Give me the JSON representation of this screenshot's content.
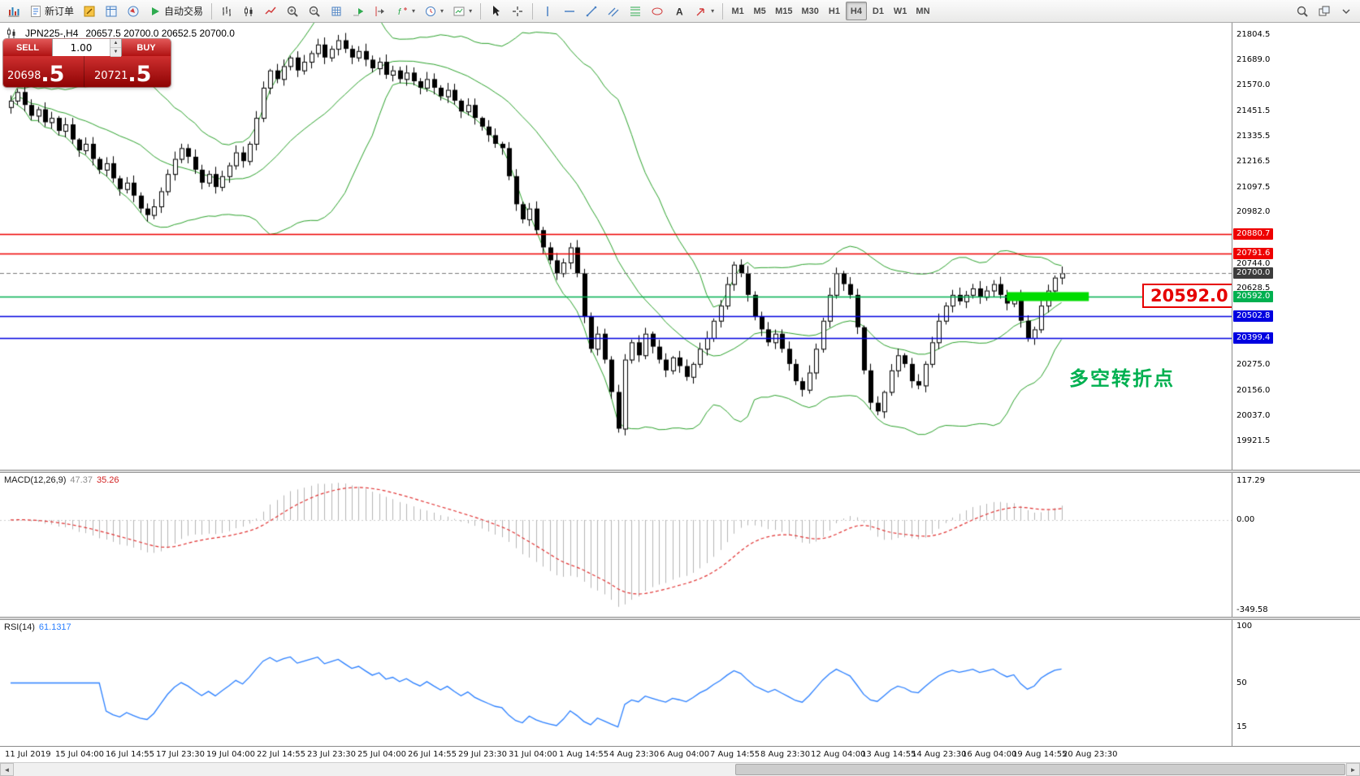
{
  "toolbar": {
    "groups": [
      {
        "items": [
          {
            "name": "new-chart-button",
            "icon": "chart-icon"
          },
          {
            "name": "new-order-button",
            "icon": "new-order-icon",
            "label": "新订单"
          },
          {
            "name": "metaeditor-button",
            "icon": "editor-icon"
          },
          {
            "name": "market-watch-button",
            "icon": "market-watch-icon"
          },
          {
            "name": "navigator-button",
            "icon": "navigator-icon"
          },
          {
            "name": "autotrading-button",
            "icon": "autotrading-play-icon",
            "label": "自动交易"
          }
        ]
      },
      {
        "items": [
          {
            "name": "bar-chart-button",
            "icon": "bar-chart-icon"
          },
          {
            "name": "candlestick-chart-button",
            "icon": "candlestick-icon"
          },
          {
            "name": "line-chart-button",
            "icon": "line-chart-icon"
          },
          {
            "name": "zoom-in-button",
            "icon": "zoom-in-icon"
          },
          {
            "name": "zoom-out-button",
            "icon": "zoom-out-icon"
          },
          {
            "name": "grid-button",
            "icon": "grid-icon"
          },
          {
            "name": "auto-scroll-button",
            "icon": "auto-scroll-icon"
          },
          {
            "name": "chart-shift-button",
            "icon": "chart-shift-icon"
          },
          {
            "name": "indicators-button",
            "icon": "indicators-icon",
            "dropdown": true
          },
          {
            "name": "periods-button",
            "icon": "clock-icon",
            "dropdown": true
          },
          {
            "name": "templates-button",
            "icon": "template-icon",
            "dropdown": true
          }
        ]
      },
      {
        "items": [
          {
            "name": "cursor-button",
            "icon": "cursor-icon"
          },
          {
            "name": "crosshair-button",
            "icon": "crosshair-icon"
          }
        ]
      },
      {
        "items": [
          {
            "name": "vertical-line-button",
            "icon": "vertical-line-icon"
          },
          {
            "name": "horizontal-line-button",
            "icon": "horizontal-line-icon"
          },
          {
            "name": "trendline-button",
            "icon": "trendline-icon"
          },
          {
            "name": "equidistant-channel-button",
            "icon": "channel-icon"
          },
          {
            "name": "fibonacci-button",
            "icon": "fibonacci-icon"
          },
          {
            "name": "shapes-button",
            "icon": "shapes-icon"
          },
          {
            "name": "text-button",
            "icon": "text-icon"
          },
          {
            "name": "arrows-button",
            "icon": "arrow-icon",
            "dropdown": true
          }
        ]
      },
      {
        "items": [
          {
            "name": "timeframe-m1-button",
            "label": "M1"
          },
          {
            "name": "timeframe-m5-button",
            "label": "M5"
          },
          {
            "name": "timeframe-m15-button",
            "label": "M15"
          },
          {
            "name": "timeframe-m30-button",
            "label": "M30"
          },
          {
            "name": "timeframe-h1-button",
            "label": "H1"
          },
          {
            "name": "timeframe-h4-button",
            "label": "H4",
            "active": true
          },
          {
            "name": "timeframe-d1-button",
            "label": "D1"
          },
          {
            "name": "timeframe-w1-button",
            "label": "W1"
          },
          {
            "name": "timeframe-mn-button",
            "label": "MN"
          }
        ]
      },
      {
        "align": "right",
        "items": [
          {
            "name": "search-button",
            "icon": "search-icon"
          },
          {
            "name": "windows-button",
            "icon": "windows-icon"
          },
          {
            "name": "toolbar-options-button",
            "icon": "chevron-down-icon"
          }
        ]
      }
    ]
  },
  "price_panel": {
    "symbol_period": "JPN225-,H4",
    "ohlc": "20657.5 20700.0 20652.5 20700.0",
    "trade_panel": {
      "sell_label": "SELL",
      "buy_label": "BUY",
      "volume": "1.00",
      "sell_price": "20698.5",
      "buy_price": "20721.5",
      "sell_price_small": "20698",
      "sell_price_big": ".5",
      "buy_price_small": "20721",
      "buy_price_big": ".5"
    },
    "callout_label": "20592.0",
    "annotation": "多空转折点"
  },
  "price_axis": {
    "labels": [
      21804.5,
      21689.0,
      21570.0,
      21451.5,
      21335.5,
      21216.5,
      21097.5,
      20982.0,
      20863.0,
      20744.0,
      20628.5,
      20275.0,
      20156.0,
      20037.0,
      19921.5
    ],
    "tags": [
      {
        "label": "20880.7",
        "value": 20880.7,
        "color": "#ee0000"
      },
      {
        "label": "20791.6",
        "value": 20791.6,
        "color": "#ee0000"
      },
      {
        "label": "20700.0",
        "value": 20700.0,
        "color": "#3c3c3c"
      },
      {
        "label": "20592.0",
        "value": 20592.0,
        "color": "#00b050"
      },
      {
        "label": "20502.8",
        "value": 20502.8,
        "color": "#0000e0"
      },
      {
        "label": "20399.4",
        "value": 20399.4,
        "color": "#0000e0"
      }
    ]
  },
  "macd": {
    "name": "MACD(12,26,9)",
    "main_value": "47.37",
    "signal_value": "35.26",
    "axis_labels": [
      "117.29",
      "0.00",
      "-349.58"
    ]
  },
  "rsi": {
    "name": "RSI(14)",
    "value": "61.1317",
    "axis_labels": [
      "100",
      "50",
      "15"
    ]
  },
  "colors": {
    "bull_candle": "#ffffff",
    "bear_candle": "#000000",
    "bollinger": "#2da32d",
    "macd_histogram": "#b4b4b4",
    "macd_signal": "#e03131",
    "rsi_line": "#2a7fff",
    "level_red": "#ee0000",
    "level_green": "#00b050",
    "level_blue": "#0000e0",
    "highlight_green": "#00dc00",
    "callout_red": "#e60000",
    "current_price_dash": "#7a7a7a"
  },
  "chart_data": {
    "type": "candlestick",
    "symbol": "JPN225-",
    "timeframe": "H4",
    "y_range": [
      19790,
      21861
    ],
    "closes": [
      21500,
      21540,
      21480,
      21430,
      21460,
      21400,
      21420,
      21360,
      21390,
      21320,
      21270,
      21300,
      21230,
      21180,
      21210,
      21140,
      21090,
      21120,
      21060,
      21000,
      20970,
      21010,
      21080,
      21160,
      21230,
      21280,
      21240,
      21180,
      21120,
      21160,
      21100,
      21150,
      21200,
      21260,
      21220,
      21300,
      21420,
      21560,
      21640,
      21600,
      21660,
      21700,
      21640,
      21680,
      21720,
      21760,
      21700,
      21740,
      21780,
      21740,
      21700,
      21730,
      21690,
      21650,
      21680,
      21620,
      21640,
      21600,
      21630,
      21590,
      21560,
      21600,
      21560,
      21520,
      21550,
      21500,
      21450,
      21480,
      21420,
      21380,
      21340,
      21300,
      21280,
      21150,
      21020,
      20950,
      21000,
      20900,
      20820,
      20760,
      20700,
      20750,
      20820,
      20700,
      20500,
      20350,
      20420,
      20300,
      20150,
      19980,
      20300,
      20380,
      20320,
      20420,
      20360,
      20300,
      20250,
      20310,
      20270,
      20220,
      20280,
      20350,
      20400,
      20480,
      20550,
      20650,
      20740,
      20700,
      20600,
      20500,
      20440,
      20380,
      20420,
      20350,
      20280,
      20200,
      20160,
      20240,
      20350,
      20480,
      20600,
      20700,
      20650,
      20600,
      20450,
      20250,
      20100,
      20060,
      20150,
      20250,
      20320,
      20280,
      20200,
      20180,
      20280,
      20380,
      20480,
      20550,
      20600,
      20570,
      20600,
      20630,
      20590,
      20620,
      20650,
      20600,
      20560,
      20590,
      20480,
      20400,
      20440,
      20550,
      20620,
      20680,
      20700
    ],
    "overlays": {
      "bollinger": {
        "period": 20,
        "deviation": 2
      }
    },
    "levels": [
      {
        "price": 20880.7,
        "color": "#ee0000"
      },
      {
        "price": 20791.6,
        "color": "#ee0000"
      },
      {
        "price": 20592.0,
        "color": "#00b050"
      },
      {
        "price": 20502.8,
        "color": "#0000e0"
      },
      {
        "price": 20399.4,
        "color": "#0000e0"
      }
    ],
    "current_price": 20700.0,
    "highlight_segment": {
      "price": 20592.0,
      "from_bar": 146,
      "to_bar": 158
    },
    "indicators": [
      {
        "type": "macd",
        "fast": 12,
        "slow": 26,
        "signal": 9
      },
      {
        "type": "rsi",
        "period": 14
      }
    ],
    "x_tick_labels": [
      "11 Jul 2019",
      "15 Jul 04:00",
      "16 Jul 14:55",
      "17 Jul 23:30",
      "19 Jul 04:00",
      "22 Jul 14:55",
      "23 Jul 23:30",
      "25 Jul 04:00",
      "26 Jul 14:55",
      "29 Jul 23:30",
      "31 Jul 04:00",
      "1 Aug 14:55",
      "4 Aug 23:30",
      "6 Aug 04:00",
      "7 Aug 14:55",
      "8 Aug 23:30",
      "12 Aug 04:00",
      "13 Aug 14:55",
      "14 Aug 23:30",
      "16 Aug 04:00",
      "19 Aug 14:55",
      "20 Aug 23:30"
    ]
  },
  "scrollbar": {
    "left_arrow_icon": "scroll-left-icon",
    "right_arrow_icon": "scroll-right-icon"
  }
}
